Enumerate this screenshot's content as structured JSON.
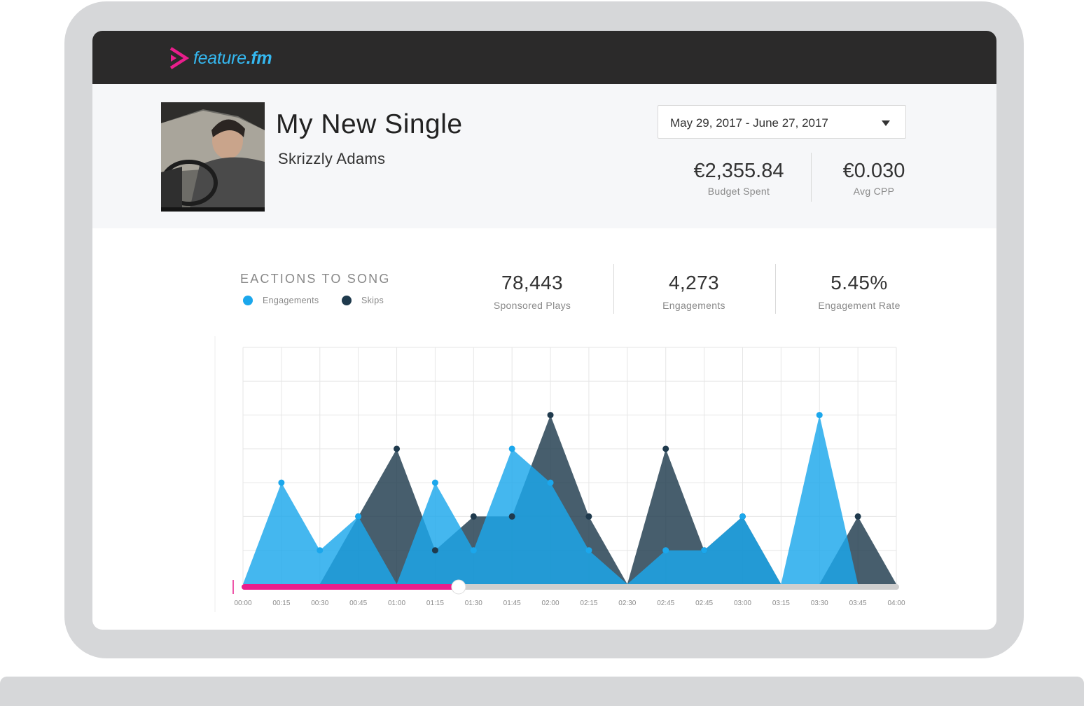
{
  "app": {
    "brand": "feature.fm"
  },
  "release": {
    "title": "My New Single",
    "artist": "Skrizzly Adams"
  },
  "date_range": {
    "value": "May 29, 2017 - June 27, 2017"
  },
  "summary": {
    "budget_spent_value": "€2,355.84",
    "budget_spent_label": "Budget Spent",
    "avg_cpp_value": "€0.030",
    "avg_cpp_label": "Avg CPP"
  },
  "section": {
    "title": "EACTIONS TO SONG",
    "legend": [
      {
        "name": "Engagements",
        "color": "#1ba7ec"
      },
      {
        "name": "Skips",
        "color": "#1f3a4d"
      }
    ]
  },
  "stats": [
    {
      "value": "78,443",
      "label": "Sponsored Plays"
    },
    {
      "value": "4,273",
      "label": "Engagements"
    },
    {
      "value": "5.45%",
      "label": "Engagement Rate"
    }
  ],
  "colors": {
    "accent_pink": "#e91e8c",
    "engagements": "#1ba7ec",
    "skips": "#1f3a4d",
    "topbar": "#2b2a2a"
  },
  "player": {
    "progress_fraction": 0.33
  },
  "chart_data": {
    "type": "area",
    "x": [
      "00:00",
      "00:15",
      "00:30",
      "00:45",
      "01:00",
      "01:15",
      "01:30",
      "01:45",
      "02:00",
      "02:15",
      "02:30",
      "02:45",
      "02:45",
      "03:00",
      "03:15",
      "03:30",
      "03:45",
      "04:00"
    ],
    "series": [
      {
        "name": "Engagements",
        "values": [
          0,
          3,
          1,
          2,
          0,
          3,
          1,
          4,
          3,
          1,
          0,
          1,
          1,
          2,
          0,
          5,
          0,
          0
        ]
      },
      {
        "name": "Skips",
        "values": [
          0,
          0,
          0,
          2,
          4,
          1,
          2,
          2,
          5,
          2,
          0,
          4,
          1,
          2,
          0,
          0,
          2,
          0
        ]
      }
    ],
    "ylim": [
      0,
      7
    ],
    "grid": true,
    "legend": "top-left"
  }
}
